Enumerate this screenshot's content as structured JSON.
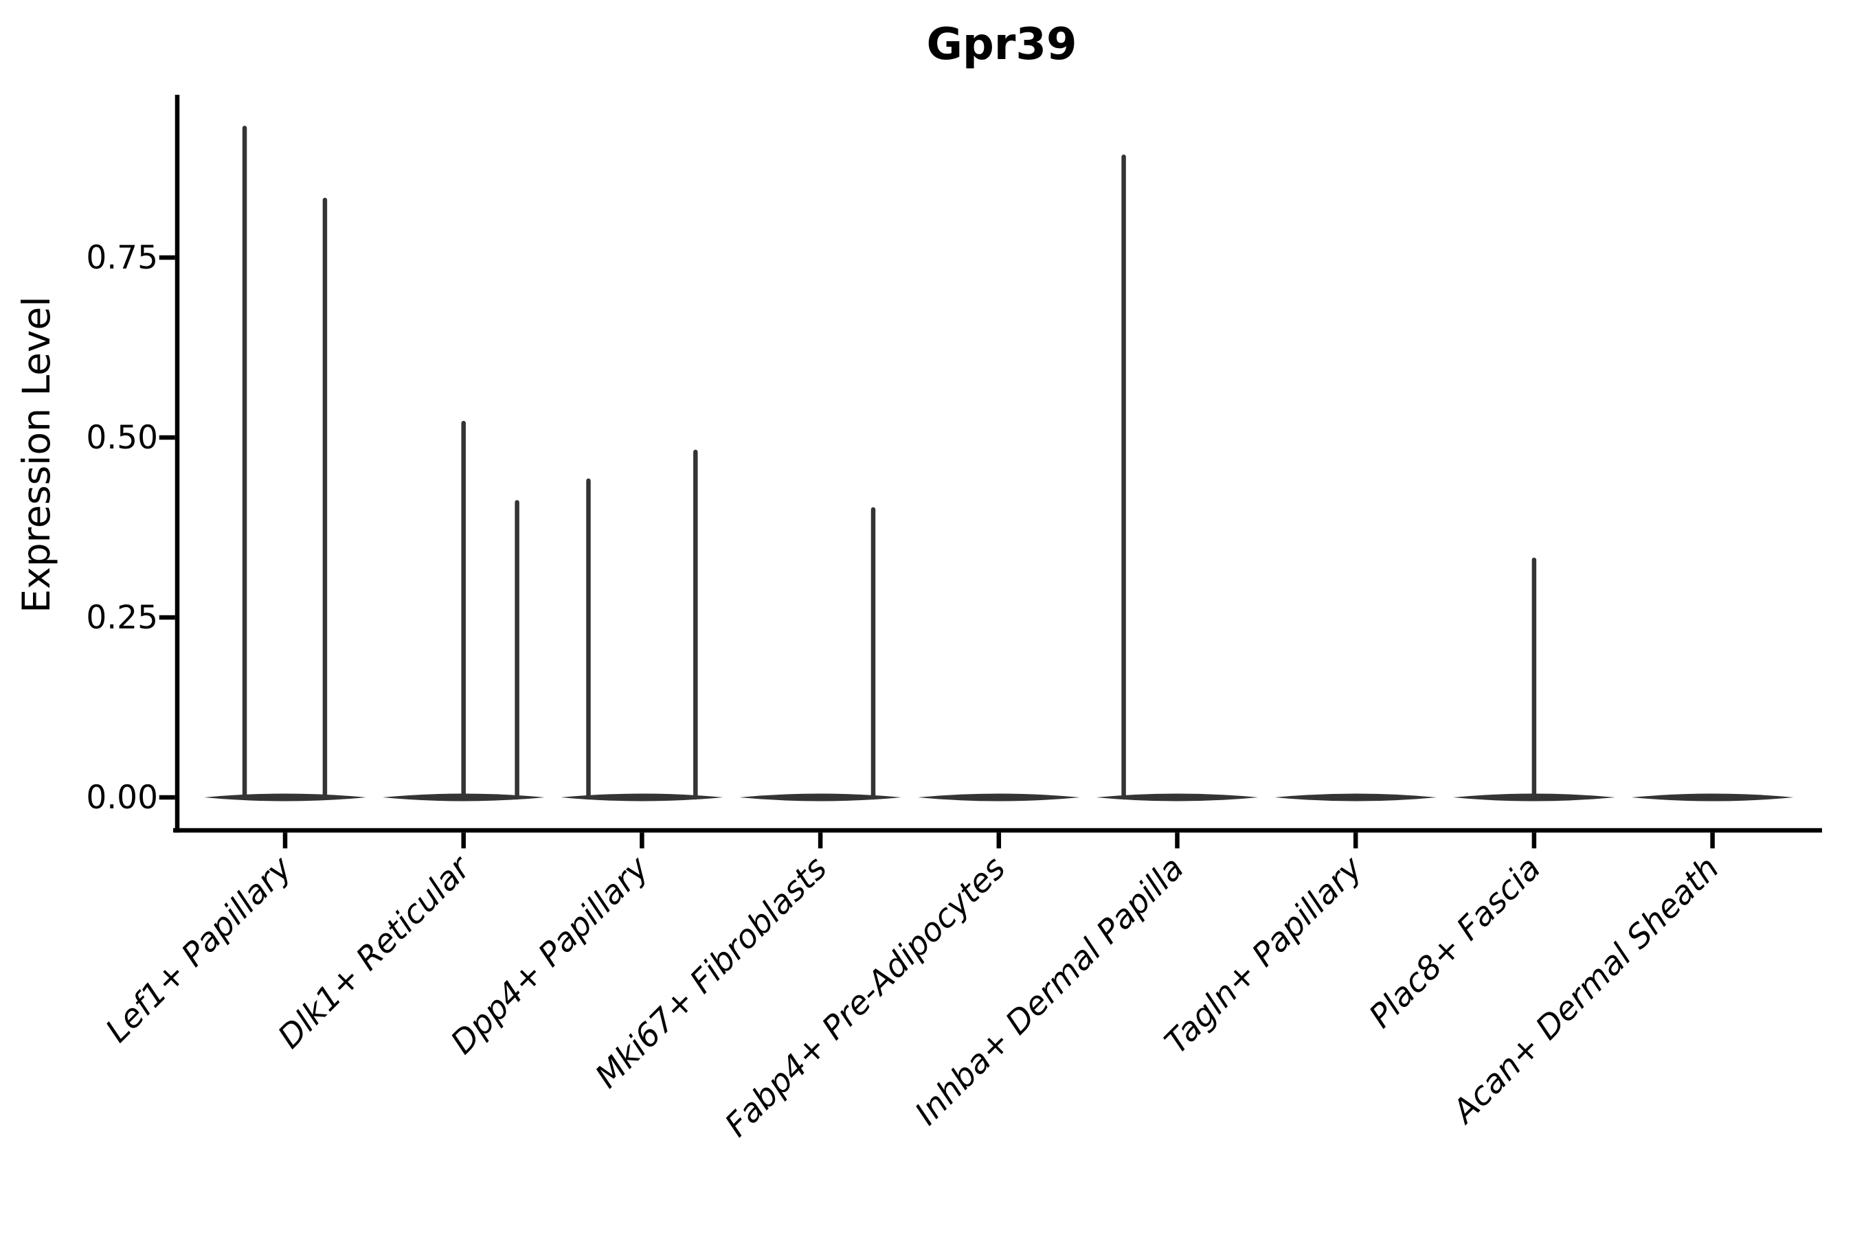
{
  "colors": {
    "background": "#ffffff",
    "axis": "#000000",
    "text": "#000000",
    "violin": "#343434"
  },
  "chart_data": {
    "type": "violin",
    "title": "Gpr39",
    "xlabel": "",
    "ylabel": "Expression Level",
    "ylim": [
      0,
      0.98
    ],
    "grid": false,
    "legend": null,
    "yticks": [
      "0.00",
      "0.25",
      "0.50",
      "0.75"
    ],
    "ytick_values": [
      0.0,
      0.25,
      0.5,
      0.75
    ],
    "categories": [
      "Lef1+ Papillary",
      "Dlk1+ Reticular",
      "Dpp4+ Papillary",
      "Mki67+ Fibroblasts",
      "Fabp4+ Pre-Adipocytes",
      "Inhba+ Dermal Papilla",
      "Tagln+ Papillary",
      "Plac8+ Fascia",
      "Acan+ Dermal Sheath"
    ],
    "series": [
      {
        "name": "Lef1+ Papillary",
        "baseline_density_value": 0.0,
        "spikes": [
          {
            "dx": -0.227,
            "value": 0.93
          },
          {
            "dx": 0.223,
            "value": 0.83
          }
        ]
      },
      {
        "name": "Dlk1+ Reticular",
        "baseline_density_value": 0.0,
        "spikes": [
          {
            "dx": 0.0,
            "value": 0.52
          },
          {
            "dx": 0.3,
            "value": 0.41
          }
        ]
      },
      {
        "name": "Dpp4+ Papillary",
        "baseline_density_value": 0.0,
        "spikes": [
          {
            "dx": -0.3,
            "value": 0.44
          },
          {
            "dx": 0.3,
            "value": 0.48
          }
        ]
      },
      {
        "name": "Mki67+ Fibroblasts",
        "baseline_density_value": 0.0,
        "spikes": [
          {
            "dx": 0.296,
            "value": 0.4
          }
        ]
      },
      {
        "name": "Fabp4+ Pre-Adipocytes",
        "baseline_density_value": 0.0,
        "spikes": []
      },
      {
        "name": "Inhba+ Dermal Papilla",
        "baseline_density_value": 0.0,
        "spikes": [
          {
            "dx": -0.3,
            "value": 0.89
          }
        ]
      },
      {
        "name": "Tagln+ Papillary",
        "baseline_density_value": 0.0,
        "spikes": []
      },
      {
        "name": "Plac8+ Fascia",
        "baseline_density_value": 0.0,
        "spikes": [
          {
            "dx": 0.0,
            "value": 0.33
          }
        ]
      },
      {
        "name": "Acan+ Dermal Sheath",
        "baseline_density_value": 0.0,
        "spikes": []
      }
    ]
  }
}
